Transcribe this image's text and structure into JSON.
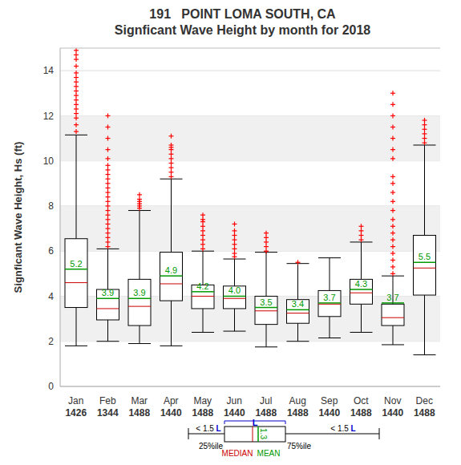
{
  "chart_data": {
    "type": "boxplot",
    "title": "191   POINT LOMA SOUTH, CA",
    "subtitle": "Signficant Wave Height by month for 2018",
    "y_label": "Signficant Wave Height, Hs (ft)",
    "categories": [
      "Jan",
      "Feb",
      "Mar",
      "Apr",
      "May",
      "Jun",
      "Jul",
      "Aug",
      "Sep",
      "Oct",
      "Nov",
      "Dec"
    ],
    "counts": [
      1426,
      1344,
      1488,
      1440,
      1488,
      1440,
      1488,
      1488,
      1440,
      1488,
      1440,
      1488
    ],
    "whisker_low": [
      1.8,
      2.0,
      1.9,
      1.8,
      2.4,
      2.45,
      1.75,
      2.0,
      2.15,
      2.4,
      1.85,
      1.4
    ],
    "q1": [
      3.5,
      2.95,
      2.7,
      3.8,
      3.45,
      3.45,
      2.75,
      2.8,
      3.1,
      3.65,
      2.7,
      4.05
    ],
    "median": [
      4.6,
      3.45,
      3.55,
      4.55,
      4.0,
      3.9,
      3.35,
      3.25,
      3.65,
      4.15,
      3.05,
      5.25
    ],
    "q3": [
      6.55,
      4.3,
      4.75,
      5.95,
      4.5,
      4.45,
      4.0,
      3.85,
      4.25,
      4.75,
      3.65,
      6.7
    ],
    "whisker_high": [
      11.15,
      6.1,
      7.8,
      9.2,
      6.0,
      5.65,
      5.95,
      5.45,
      5.7,
      6.4,
      4.9,
      10.7
    ],
    "mean": [
      5.2,
      3.9,
      3.9,
      4.9,
      4.2,
      4.0,
      3.5,
      3.4,
      3.7,
      4.3,
      3.7,
      5.5
    ],
    "mean_labels": [
      "5.2",
      "3.9",
      "3.9",
      "4.9",
      "4.2",
      "4.0",
      "3.5",
      "3.4",
      "3.7",
      "4.3",
      "3.7",
      "5.5"
    ],
    "outliers": [
      [
        11.3,
        11.6,
        11.9,
        12.1,
        12.3,
        12.5,
        12.7,
        12.9,
        13.1,
        13.3,
        13.5,
        13.7,
        13.9,
        14.2,
        14.5,
        14.7,
        14.9
      ],
      [
        6.2,
        6.4,
        6.6,
        6.8,
        7.0,
        7.2,
        7.4,
        7.6,
        7.8,
        8.0,
        8.2,
        8.4,
        8.6,
        8.8,
        9.0,
        9.2,
        9.4,
        9.6,
        9.8,
        10.1,
        10.5,
        11.0,
        11.5,
        12.0
      ],
      [
        7.9,
        8.0,
        8.1,
        8.2,
        8.3,
        8.5
      ],
      [
        9.3,
        9.5,
        9.7,
        9.9,
        10.1,
        10.3,
        10.5,
        10.6,
        10.7,
        11.1
      ],
      [
        6.1,
        6.3,
        6.5,
        6.7,
        6.9,
        7.1,
        7.3,
        7.4,
        7.6
      ],
      [
        5.75,
        5.9,
        6.1,
        6.3,
        6.5,
        6.7,
        6.9,
        7.2
      ],
      [
        6.0,
        6.2,
        6.4,
        6.6,
        6.8
      ],
      [
        5.5
      ],
      [],
      [
        6.5,
        6.7,
        6.9,
        7.1
      ],
      [
        5.0,
        5.3,
        5.6,
        5.9,
        6.2,
        6.5,
        6.8,
        7.1,
        7.4,
        7.8,
        8.2,
        8.6,
        9.0,
        9.3,
        10.1,
        10.5,
        11.0,
        11.5,
        12.0,
        12.5,
        13.0
      ],
      [
        10.8,
        11.0,
        11.2,
        11.4,
        11.6,
        11.8
      ]
    ],
    "ylim": [
      0,
      15
    ],
    "yticks": [
      0,
      2,
      4,
      6,
      8,
      10,
      12,
      14
    ],
    "grid": true,
    "key": {
      "iqr": "L",
      "whisker": "< 1.5 L",
      "q1": "25%ile",
      "q3": "75%ile",
      "median": "MEDIAN",
      "mean": "MEAN",
      "mean_label": "1.3"
    }
  }
}
